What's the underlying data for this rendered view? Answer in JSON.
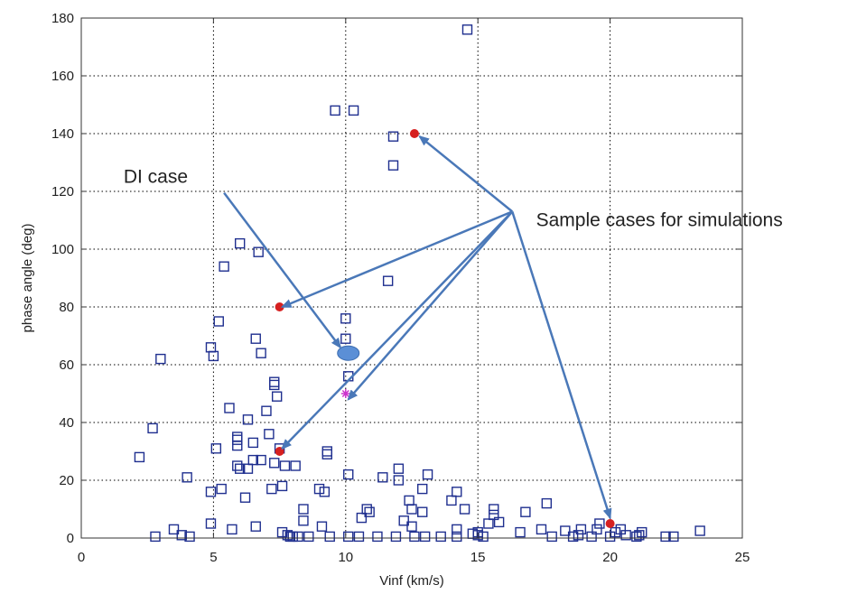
{
  "chart_data": {
    "type": "scatter",
    "title": "",
    "xlabel": "Vinf (km/s)",
    "ylabel": "phase angle (deg)",
    "xlim": [
      0,
      25
    ],
    "ylim": [
      0,
      180
    ],
    "x_ticks": [
      0,
      5,
      10,
      15,
      20,
      25
    ],
    "y_ticks": [
      0,
      20,
      40,
      60,
      80,
      100,
      120,
      140,
      160,
      180
    ],
    "grid": true,
    "grid_style": "dotted",
    "marker_color": "#1f2f8f",
    "highlight_color": "#d62020",
    "di_marker_color": "#5b8fd6",
    "sim_marker_color": "#cc33cc",
    "arrow_color": "#4a78b8",
    "series": [
      {
        "marker": "square",
        "points": [
          [
            2.2,
            28
          ],
          [
            2.7,
            38
          ],
          [
            2.8,
            0.5
          ],
          [
            3.0,
            62
          ],
          [
            3.5,
            3
          ],
          [
            3.8,
            1
          ],
          [
            4.0,
            21
          ],
          [
            4.1,
            0.5
          ],
          [
            4.9,
            66
          ],
          [
            4.9,
            16
          ],
          [
            4.9,
            5
          ],
          [
            5.0,
            63
          ],
          [
            5.1,
            31
          ],
          [
            5.2,
            75
          ],
          [
            5.3,
            17
          ],
          [
            5.4,
            94
          ],
          [
            5.6,
            45
          ],
          [
            5.7,
            3
          ],
          [
            5.9,
            35
          ],
          [
            5.9,
            34
          ],
          [
            5.9,
            32
          ],
          [
            5.9,
            25
          ],
          [
            6.0,
            102
          ],
          [
            6.0,
            24
          ],
          [
            6.2,
            14
          ],
          [
            6.3,
            24
          ],
          [
            6.3,
            41
          ],
          [
            6.5,
            33
          ],
          [
            6.5,
            27
          ],
          [
            6.6,
            4
          ],
          [
            6.6,
            69
          ],
          [
            6.7,
            99
          ],
          [
            6.8,
            64
          ],
          [
            6.8,
            27
          ],
          [
            7.0,
            44
          ],
          [
            7.1,
            36
          ],
          [
            7.2,
            17
          ],
          [
            7.3,
            26
          ],
          [
            7.3,
            54
          ],
          [
            7.3,
            53
          ],
          [
            7.4,
            49
          ],
          [
            7.5,
            31
          ],
          [
            7.6,
            2
          ],
          [
            7.6,
            18
          ],
          [
            7.7,
            25
          ],
          [
            7.8,
            1
          ],
          [
            7.9,
            0.5
          ],
          [
            8.0,
            0.5
          ],
          [
            8.1,
            25
          ],
          [
            8.2,
            0.5
          ],
          [
            8.4,
            10
          ],
          [
            8.4,
            6
          ],
          [
            8.6,
            0.5
          ],
          [
            9.0,
            17
          ],
          [
            9.1,
            4
          ],
          [
            9.2,
            16
          ],
          [
            9.3,
            30
          ],
          [
            9.3,
            29
          ],
          [
            9.4,
            0.5
          ],
          [
            9.6,
            148
          ],
          [
            10.0,
            76
          ],
          [
            10.0,
            69
          ],
          [
            10.1,
            22
          ],
          [
            10.1,
            56
          ],
          [
            10.1,
            0.5
          ],
          [
            10.3,
            148
          ],
          [
            10.5,
            0.5
          ],
          [
            10.6,
            7
          ],
          [
            10.8,
            10
          ],
          [
            10.9,
            9
          ],
          [
            11.2,
            0.5
          ],
          [
            11.4,
            21
          ],
          [
            11.6,
            89
          ],
          [
            11.8,
            139
          ],
          [
            11.8,
            129
          ],
          [
            11.9,
            0.5
          ],
          [
            12.0,
            24
          ],
          [
            12.0,
            20
          ],
          [
            12.2,
            6
          ],
          [
            12.4,
            13
          ],
          [
            12.5,
            10
          ],
          [
            12.5,
            4
          ],
          [
            12.6,
            0.5
          ],
          [
            12.9,
            17
          ],
          [
            12.9,
            9
          ],
          [
            13.0,
            0.5
          ],
          [
            13.1,
            22
          ],
          [
            13.6,
            0.5
          ],
          [
            14.0,
            13
          ],
          [
            14.2,
            16
          ],
          [
            14.2,
            3
          ],
          [
            14.2,
            0.5
          ],
          [
            14.5,
            10
          ],
          [
            14.6,
            176
          ],
          [
            14.8,
            1.5
          ],
          [
            15.0,
            2
          ],
          [
            15.0,
            1
          ],
          [
            15.2,
            0.5
          ],
          [
            15.4,
            5
          ],
          [
            15.6,
            10
          ],
          [
            15.6,
            8
          ],
          [
            15.8,
            5.5
          ],
          [
            16.6,
            2
          ],
          [
            16.8,
            9
          ],
          [
            17.4,
            3
          ],
          [
            17.6,
            12
          ],
          [
            17.8,
            0.5
          ],
          [
            18.3,
            2.5
          ],
          [
            18.6,
            0.5
          ],
          [
            18.8,
            1
          ],
          [
            18.9,
            3
          ],
          [
            19.3,
            0.5
          ],
          [
            19.5,
            3
          ],
          [
            19.6,
            5
          ],
          [
            20.0,
            0.5
          ],
          [
            20.2,
            2
          ],
          [
            20.4,
            3
          ],
          [
            20.6,
            1
          ],
          [
            21.0,
            0.5
          ],
          [
            21.1,
            1
          ],
          [
            21.2,
            2
          ],
          [
            22.1,
            0.5
          ],
          [
            22.4,
            0.5
          ],
          [
            23.4,
            2.5
          ]
        ]
      },
      {
        "marker": "filled-circle",
        "points": [
          [
            7.5,
            80
          ],
          [
            7.5,
            30
          ],
          [
            12.6,
            140
          ],
          [
            20.0,
            5
          ]
        ]
      },
      {
        "marker": "ellipse",
        "points": [
          [
            10.1,
            64
          ]
        ]
      },
      {
        "marker": "asterisk",
        "points": [
          [
            10.0,
            50
          ]
        ]
      }
    ],
    "annotations": [
      {
        "text": "DI case",
        "x": 1.6,
        "y": 123
      },
      {
        "text": "Sample cases for simulations",
        "x": 17.2,
        "y": 108
      }
    ]
  }
}
